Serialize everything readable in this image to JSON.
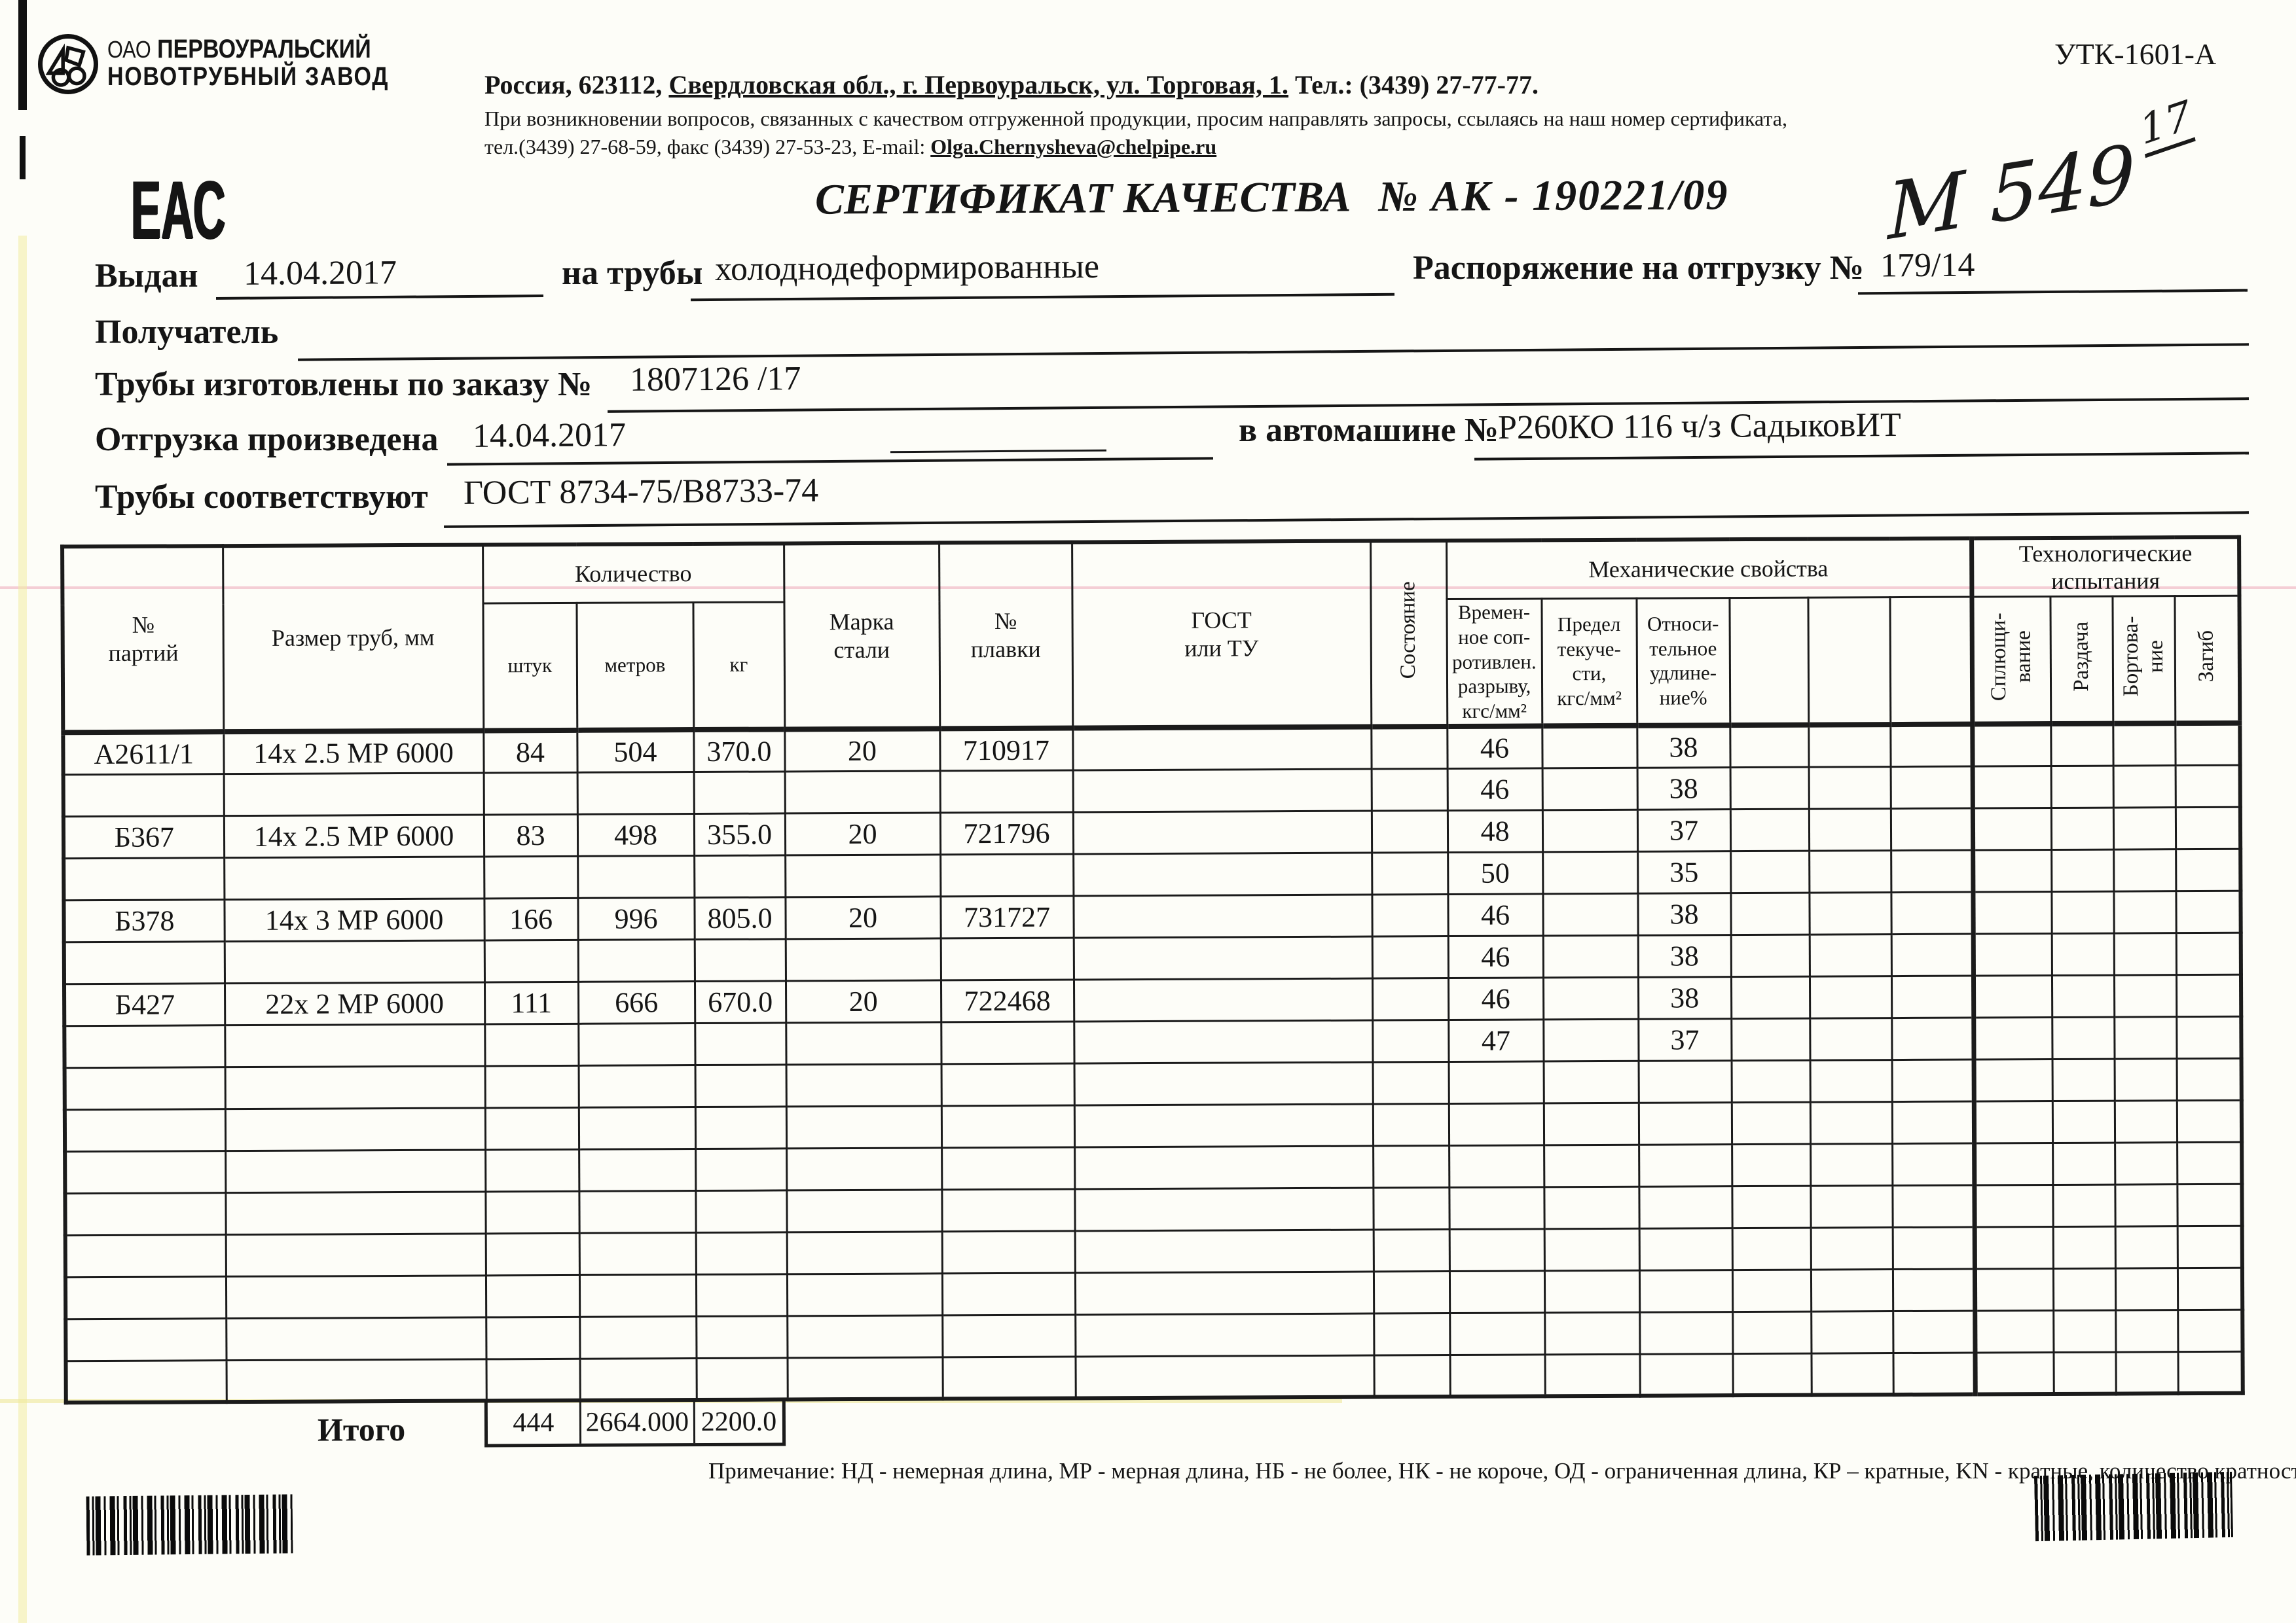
{
  "page": {
    "form_code": "УТК-1601-А"
  },
  "logo": {
    "org_prefix": "ОАО",
    "org_line1": "ПЕРВОУРАЛЬСКИЙ",
    "org_line2": "НОВОТРУБНЫЙ ЗАВОД",
    "eac_mark": "ЕАС"
  },
  "contact": {
    "line1_part1": "Россия, 623112, ",
    "line1_part2": "Свердловская обл., г. Первоуральск, ул. Торговая, 1.",
    "line1_part3": " Тел.: (3439) 27-77-77.",
    "line2": "При возникновении вопросов, связанных с качеством отгруженной продукции, просим направлять запросы, ссылаясь на наш номер сертификата,",
    "line3_prefix": "тел.(3439) 27-68-59, факс (3439) 27-53-23,  E-mail: ",
    "email": "Olga.Chernysheva@chelpipe.ru"
  },
  "title": {
    "label": "СЕРТИФИКАТ КАЧЕСТВА",
    "number": "№  АК -  190221/09"
  },
  "handwritten": {
    "main": "М 549",
    "sup": "17"
  },
  "fields": {
    "issued_label": "Выдан",
    "issued_value": "14.04.2017",
    "pipe_type_label": "на трубы",
    "pipe_type_value": "холоднодеформированные",
    "order_dispatch_label": "Распоряжение на отгрузку №",
    "order_dispatch_value": "179/14",
    "receiver_label": "Получатель",
    "made_by_order_label": "Трубы изготовлены по заказу №",
    "made_by_order_value": "1807126  /17",
    "shipped_label": "Отгрузка произведена",
    "shipped_date": "14.04.2017",
    "truck_label": "в автомашине №",
    "truck_value": "Р260КО 116 ч/з СадыковИТ",
    "conform_label": "Трубы соответствуют",
    "conform_value": "ГОСТ 8734-75/В8733-74"
  },
  "table": {
    "headers": {
      "batch": "№\nпартий",
      "size": "Размер труб, мм",
      "quantity_group": "Количество",
      "pieces": "штук",
      "meters": "метров",
      "kg": "кг",
      "steel_grade": "Марка\nстали",
      "heat_no": "№\nплавки",
      "gost": "ГОСТ\nили ТУ",
      "state": "Состояние",
      "mech_group": "Механические свойства",
      "tensile": "Времен-\nное соп-\nротивлен.\nразрыву,\nкгс/мм²",
      "yield_str": "Предел\nтекуче-\nсти,\nкгс/мм²",
      "elongation": "Относи-\nтельное\nудлине-\nние%",
      "tech_group": "Технологические\nиспытания",
      "flattening": "Сплющи-\nвание",
      "expansion": "Раздача",
      "flanging": "Бортова-\nние",
      "bend": "Загиб"
    },
    "rows": [
      {
        "batch": "А2611/1",
        "size": "14x 2.5 МР 6000",
        "pcs": "84",
        "m": "504",
        "kg": "370.0",
        "steel": "20",
        "heat": "710917",
        "tensile": "46",
        "elong": "38"
      },
      {
        "tensile": "46",
        "elong": "38"
      },
      {
        "batch": "Б367",
        "size": "14x 2.5 МР 6000",
        "pcs": "83",
        "m": "498",
        "kg": "355.0",
        "steel": "20",
        "heat": "721796",
        "tensile": "48",
        "elong": "37"
      },
      {
        "tensile": "50",
        "elong": "35"
      },
      {
        "batch": "Б378",
        "size": "14x 3 МР 6000",
        "pcs": "166",
        "m": "996",
        "kg": "805.0",
        "steel": "20",
        "heat": "731727",
        "tensile": "46",
        "elong": "38"
      },
      {
        "tensile": "46",
        "elong": "38"
      },
      {
        "batch": "Б427",
        "size": "22x 2 МР 6000",
        "pcs": "111",
        "m": "666",
        "kg": "670.0",
        "steel": "20",
        "heat": "722468",
        "tensile": "46",
        "elong": "38"
      },
      {
        "tensile": "47",
        "elong": "37"
      },
      {},
      {},
      {},
      {},
      {},
      {},
      {},
      {}
    ],
    "total_label": "Итого",
    "total_pieces": "444",
    "total_meters": "2664.000",
    "total_kg": "2200.0"
  },
  "note": "Примечание: НД - немерная длина, МР - мерная длина, НБ - не более, НК - не короче, ОД - ограниченная длина, КР – кратные, KN - кратные, количество кратностей"
}
